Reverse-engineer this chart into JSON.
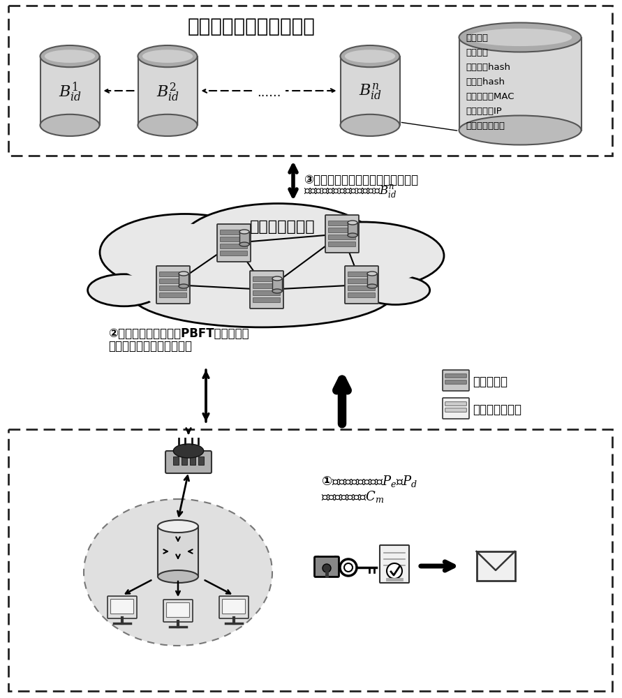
{
  "title": "基于区块链的分布式账本",
  "cloud_label": "分布式验证节点",
  "step2_text": "②分布式验证节点通过PBFT算法对新入\n网节点的证书信息进行验证",
  "step3_text": "③根据身份验证通过的新入网节点的\n信息及公钥生成节点身份区块$B_{id}^n$",
  "step1_text": "①生成非对称密钥对$P_e$、$P_d$\n以及自签名证书$C_m$",
  "legend_node1": "已入网节点",
  "legend_node2": "新入网申请节点",
  "scroll_content": [
    "区块编号",
    "区块种类",
    "前一个块hash",
    "当前块hash",
    "新入网节点MAC",
    "新入网节点IP",
    "新入网节点公钥"
  ],
  "bg_color": "#ffffff"
}
